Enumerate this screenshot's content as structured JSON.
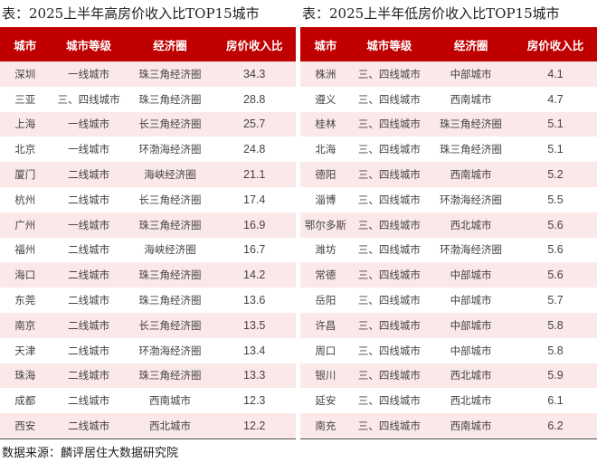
{
  "colors": {
    "header_bg": "#c00000",
    "stripe": "#fbe8e8"
  },
  "left": {
    "title": "表：2025上半年高房价收入比TOP15城市",
    "headers": [
      "城市",
      "城市等级",
      "经济圈",
      "房价收入比"
    ],
    "rows": [
      [
        "深圳",
        "一线城市",
        "珠三角经济圈",
        "34.3"
      ],
      [
        "三亚",
        "三、四线城市",
        "珠三角经济圈",
        "28.8"
      ],
      [
        "上海",
        "一线城市",
        "长三角经济圈",
        "25.7"
      ],
      [
        "北京",
        "一线城市",
        "环渤海经济圈",
        "24.8"
      ],
      [
        "厦门",
        "二线城市",
        "海峡经济圈",
        "21.1"
      ],
      [
        "杭州",
        "二线城市",
        "长三角经济圈",
        "17.4"
      ],
      [
        "广州",
        "一线城市",
        "珠三角经济圈",
        "16.9"
      ],
      [
        "福州",
        "二线城市",
        "海峡经济圈",
        "16.7"
      ],
      [
        "海口",
        "二线城市",
        "珠三角经济圈",
        "14.2"
      ],
      [
        "东莞",
        "二线城市",
        "珠三角经济圈",
        "13.6"
      ],
      [
        "南京",
        "二线城市",
        "长三角经济圈",
        "13.5"
      ],
      [
        "天津",
        "二线城市",
        "环渤海经济圈",
        "13.4"
      ],
      [
        "珠海",
        "二线城市",
        "珠三角经济圈",
        "13.3"
      ],
      [
        "成都",
        "二线城市",
        "西南城市",
        "12.3"
      ],
      [
        "西安",
        "二线城市",
        "西北城市",
        "12.2"
      ]
    ]
  },
  "right": {
    "title": "表：2025上半年低房价收入比TOP15城市",
    "headers": [
      "城市",
      "城市等级",
      "经济圈",
      "房价收入比"
    ],
    "rows": [
      [
        "株洲",
        "三、四线城市",
        "中部城市",
        "4.1"
      ],
      [
        "遵义",
        "三、四线城市",
        "西南城市",
        "4.7"
      ],
      [
        "桂林",
        "三、四线城市",
        "珠三角经济圈",
        "5.1"
      ],
      [
        "北海",
        "三、四线城市",
        "珠三角经济圈",
        "5.1"
      ],
      [
        "德阳",
        "三、四线城市",
        "西南城市",
        "5.2"
      ],
      [
        "淄博",
        "三、四线城市",
        "环渤海经济圈",
        "5.5"
      ],
      [
        "鄂尔多斯",
        "三、四线城市",
        "西北城市",
        "5.6"
      ],
      [
        "潍坊",
        "三、四线城市",
        "环渤海经济圈",
        "5.6"
      ],
      [
        "常德",
        "三、四线城市",
        "中部城市",
        "5.6"
      ],
      [
        "岳阳",
        "三、四线城市",
        "中部城市",
        "5.7"
      ],
      [
        "许昌",
        "三、四线城市",
        "中部城市",
        "5.8"
      ],
      [
        "周口",
        "三、四线城市",
        "中部城市",
        "5.8"
      ],
      [
        "银川",
        "三、四线城市",
        "西北城市",
        "5.9"
      ],
      [
        "延安",
        "三、四线城市",
        "西北城市",
        "6.1"
      ],
      [
        "南充",
        "三、四线城市",
        "西南城市",
        "6.2"
      ]
    ]
  },
  "source": "数据来源：麟评居住大数据研究院"
}
